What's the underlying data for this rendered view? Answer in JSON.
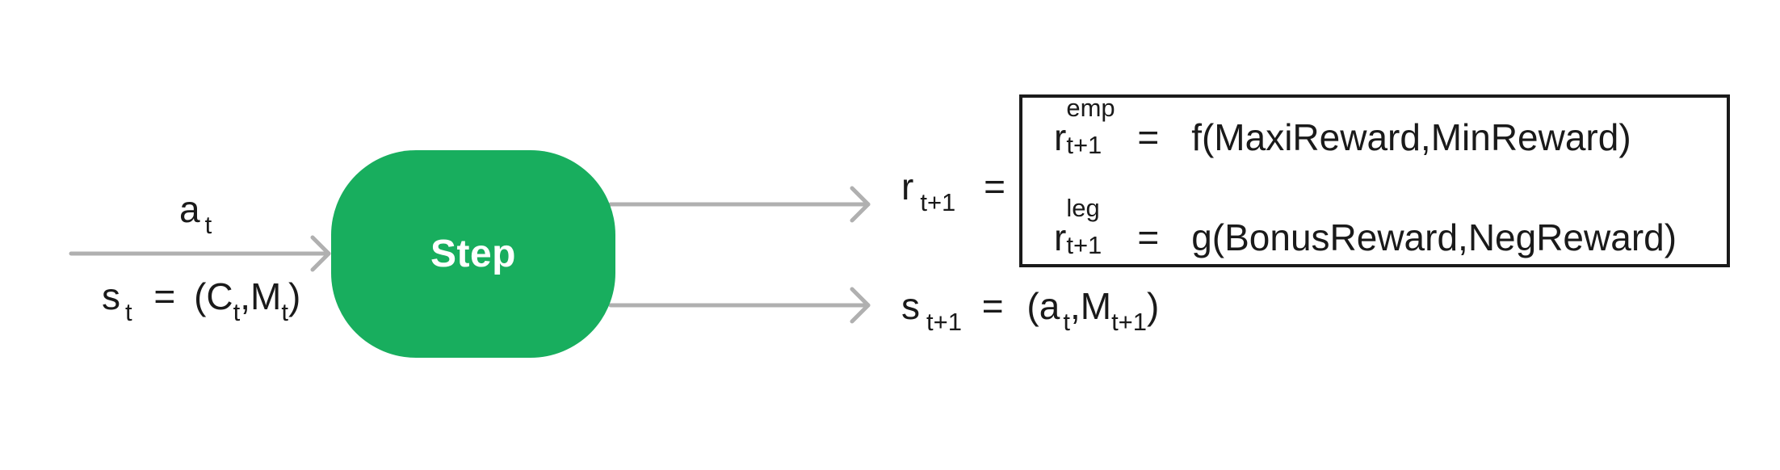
{
  "diagram": {
    "step_label": "Step",
    "input_action": {
      "symbol": "a",
      "sub": "t"
    },
    "input_state": {
      "symbol": "s",
      "sub": "t",
      "equals": "=",
      "open": "(",
      "c_symbol": "C",
      "c_sub": "t",
      "comma": ",",
      "m_symbol": "M",
      "m_sub": "t",
      "close": ")"
    },
    "reward": {
      "symbol": "r",
      "sub": "t+1",
      "equals": "="
    },
    "reward_components": [
      {
        "symbol": "r",
        "sup": "emp",
        "sub": "t+1",
        "equals": "=",
        "formula": "f(MaxiReward,MinReward)"
      },
      {
        "symbol": "r",
        "sup": "leg",
        "sub": "t+1",
        "equals": "=",
        "formula": "g(BonusReward,NegReward)"
      }
    ],
    "next_state": {
      "symbol": "s",
      "sub": "t+1",
      "equals": "=",
      "open": "(",
      "a_symbol": "a",
      "a_sub": "t",
      "comma": ",",
      "m_symbol": "M",
      "m_sub": "t+1",
      "close": ")"
    }
  },
  "colors": {
    "step_fill": "#18ae5e",
    "arrow": "#b0b0b0",
    "text": "#1a1a1a"
  }
}
